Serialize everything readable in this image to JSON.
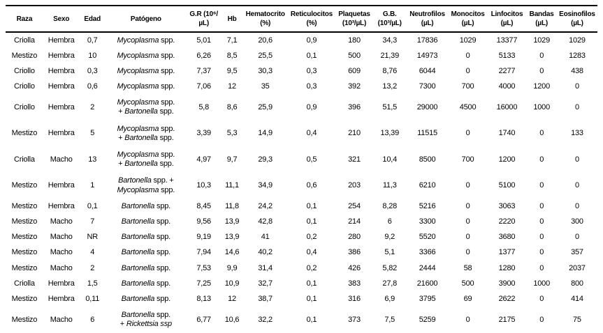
{
  "table": {
    "columns": [
      {
        "id": "raza",
        "lines": [
          "Raza"
        ]
      },
      {
        "id": "sexo",
        "lines": [
          "Sexo"
        ]
      },
      {
        "id": "edad",
        "lines": [
          "Edad"
        ]
      },
      {
        "id": "patogeno",
        "lines": [
          "Patógeno"
        ]
      },
      {
        "id": "gr",
        "lines": [
          "G.R (10⁶/",
          "µL)"
        ]
      },
      {
        "id": "hb",
        "lines": [
          "Hb"
        ]
      },
      {
        "id": "hematocrito",
        "lines": [
          "Hematocrito",
          "(%)"
        ]
      },
      {
        "id": "reticulocitos",
        "lines": [
          "Reticulocitos",
          "(%)"
        ]
      },
      {
        "id": "plaquetas",
        "lines": [
          "Plaquetas",
          "(10³/µL)"
        ]
      },
      {
        "id": "gb",
        "lines": [
          "G.B.",
          "(10³/µL)"
        ]
      },
      {
        "id": "neutrofilos",
        "lines": [
          "Neutrofilos",
          "(µL)"
        ]
      },
      {
        "id": "monocitos",
        "lines": [
          "Monocitos",
          "(µL)"
        ]
      },
      {
        "id": "linfocitos",
        "lines": [
          "Linfocitos",
          "(µL)"
        ]
      },
      {
        "id": "bandas",
        "lines": [
          "Bandas",
          "(µL)"
        ]
      },
      {
        "id": "eosinofilos",
        "lines": [
          "Eosinofilos",
          "(µL)"
        ]
      }
    ],
    "rows": [
      {
        "raza": "Criolla",
        "sexo": "Hembra",
        "edad": "0,7",
        "patogeno": [
          [
            {
              "t": "Mycoplasma",
              "i": true
            },
            {
              "t": " spp.",
              "i": false
            }
          ]
        ],
        "gr": "5,01",
        "hb": "7,1",
        "hematocrito": "20,6",
        "reticulocitos": "0,9",
        "plaquetas": "180",
        "gb": "34,3",
        "neutrofilos": "17836",
        "monocitos": "1029",
        "linfocitos": "13377",
        "bandas": "1029",
        "eosinofilos": "1029"
      },
      {
        "raza": "Mestizo",
        "sexo": "Hembra",
        "edad": "10",
        "patogeno": [
          [
            {
              "t": "Mycoplasma",
              "i": true
            },
            {
              "t": " spp.",
              "i": false
            }
          ]
        ],
        "gr": "6,26",
        "hb": "8,5",
        "hematocrito": "25,5",
        "reticulocitos": "0,1",
        "plaquetas": "500",
        "gb": "21,39",
        "neutrofilos": "14973",
        "monocitos": "0",
        "linfocitos": "5133",
        "bandas": "0",
        "eosinofilos": "1283"
      },
      {
        "raza": "Criollo",
        "sexo": "Hembra",
        "edad": "0,3",
        "patogeno": [
          [
            {
              "t": "Mycoplasma",
              "i": true
            },
            {
              "t": " spp.",
              "i": false
            }
          ]
        ],
        "gr": "7,37",
        "hb": "9,5",
        "hematocrito": "30,3",
        "reticulocitos": "0,3",
        "plaquetas": "609",
        "gb": "8,76",
        "neutrofilos": "6044",
        "monocitos": "0",
        "linfocitos": "2277",
        "bandas": "0",
        "eosinofilos": "438"
      },
      {
        "raza": "Criollo",
        "sexo": "Hembra",
        "edad": "0,6",
        "patogeno": [
          [
            {
              "t": "Mycoplasma",
              "i": true
            },
            {
              "t": " spp.",
              "i": false
            }
          ]
        ],
        "gr": "7,06",
        "hb": "12",
        "hematocrito": "35",
        "reticulocitos": "0,3",
        "plaquetas": "392",
        "gb": "13,2",
        "neutrofilos": "7300",
        "monocitos": "700",
        "linfocitos": "4000",
        "bandas": "1200",
        "eosinofilos": "0"
      },
      {
        "raza": "Criollo",
        "sexo": "Hembra",
        "edad": "2",
        "patogeno": [
          [
            {
              "t": "Mycoplasma",
              "i": true
            },
            {
              "t": " spp.",
              "i": false
            }
          ],
          [
            {
              "t": "+ ",
              "i": false
            },
            {
              "t": "Bartonella",
              "i": true
            },
            {
              "t": " spp.",
              "i": false
            }
          ]
        ],
        "gr": "5,8",
        "hb": "8,6",
        "hematocrito": "25,9",
        "reticulocitos": "0,9",
        "plaquetas": "396",
        "gb": "51,5",
        "neutrofilos": "29000",
        "monocitos": "4500",
        "linfocitos": "16000",
        "bandas": "1000",
        "eosinofilos": "0"
      },
      {
        "raza": "Mestizo",
        "sexo": "Hembra",
        "edad": "5",
        "patogeno": [
          [
            {
              "t": "Mycoplasma",
              "i": true
            },
            {
              "t": " spp.",
              "i": false
            }
          ],
          [
            {
              "t": "+ ",
              "i": false
            },
            {
              "t": "Bartonella",
              "i": true
            },
            {
              "t": " spp.",
              "i": false
            }
          ]
        ],
        "gr": "3,39",
        "hb": "5,3",
        "hematocrito": "14,9",
        "reticulocitos": "0,4",
        "plaquetas": "210",
        "gb": "13,39",
        "neutrofilos": "11515",
        "monocitos": "0",
        "linfocitos": "1740",
        "bandas": "0",
        "eosinofilos": "133"
      },
      {
        "raza": "Criolla",
        "sexo": "Macho",
        "edad": "13",
        "patogeno": [
          [
            {
              "t": "Mycoplasma",
              "i": true
            },
            {
              "t": " spp.",
              "i": false
            }
          ],
          [
            {
              "t": "+ ",
              "i": false
            },
            {
              "t": "Bartonella",
              "i": true
            },
            {
              "t": " spp.",
              "i": false
            }
          ]
        ],
        "gr": "4,97",
        "hb": "9,7",
        "hematocrito": "29,3",
        "reticulocitos": "0,5",
        "plaquetas": "321",
        "gb": "10,4",
        "neutrofilos": "8500",
        "monocitos": "700",
        "linfocitos": "1200",
        "bandas": "0",
        "eosinofilos": "0"
      },
      {
        "raza": "Mestizo",
        "sexo": "Hembra",
        "edad": "1",
        "patogeno": [
          [
            {
              "t": "Bartonella",
              "i": true
            },
            {
              "t": " spp. +",
              "i": false
            }
          ],
          [
            {
              "t": "Mycoplasma",
              "i": true
            },
            {
              "t": " spp.",
              "i": false
            }
          ]
        ],
        "gr": "10,3",
        "hb": "11,1",
        "hematocrito": "34,9",
        "reticulocitos": "0,6",
        "plaquetas": "203",
        "gb": "11,3",
        "neutrofilos": "6210",
        "monocitos": "0",
        "linfocitos": "5100",
        "bandas": "0",
        "eosinofilos": "0"
      },
      {
        "raza": "Mestizo",
        "sexo": "Hembra",
        "edad": "0,1",
        "patogeno": [
          [
            {
              "t": "Bartonella",
              "i": true
            },
            {
              "t": " spp.",
              "i": false
            }
          ]
        ],
        "gr": "8,45",
        "hb": "11,8",
        "hematocrito": "24,2",
        "reticulocitos": "0,1",
        "plaquetas": "254",
        "gb": "8,28",
        "neutrofilos": "5216",
        "monocitos": "0",
        "linfocitos": "3063",
        "bandas": "0",
        "eosinofilos": "0"
      },
      {
        "raza": "Mestizo",
        "sexo": "Macho",
        "edad": "7",
        "patogeno": [
          [
            {
              "t": "Bartonella",
              "i": true
            },
            {
              "t": " spp.",
              "i": false
            }
          ]
        ],
        "gr": "9,56",
        "hb": "13,9",
        "hematocrito": "42,8",
        "reticulocitos": "0,1",
        "plaquetas": "214",
        "gb": "6",
        "neutrofilos": "3300",
        "monocitos": "0",
        "linfocitos": "2220",
        "bandas": "0",
        "eosinofilos": "300"
      },
      {
        "raza": "Mestizo",
        "sexo": "Macho",
        "edad": "NR",
        "patogeno": [
          [
            {
              "t": "Bartonella",
              "i": true
            },
            {
              "t": " spp.",
              "i": false
            }
          ]
        ],
        "gr": "9,19",
        "hb": "13,9",
        "hematocrito": "41",
        "reticulocitos": "0,2",
        "plaquetas": "280",
        "gb": "9,2",
        "neutrofilos": "5520",
        "monocitos": "0",
        "linfocitos": "3680",
        "bandas": "0",
        "eosinofilos": "0"
      },
      {
        "raza": "Mestizo",
        "sexo": "Macho",
        "edad": "4",
        "patogeno": [
          [
            {
              "t": "Bartonella",
              "i": true
            },
            {
              "t": " spp.",
              "i": false
            }
          ]
        ],
        "gr": "7,94",
        "hb": "14,6",
        "hematocrito": "40,2",
        "reticulocitos": "0,4",
        "plaquetas": "386",
        "gb": "5,1",
        "neutrofilos": "3366",
        "monocitos": "0",
        "linfocitos": "1377",
        "bandas": "0",
        "eosinofilos": "357"
      },
      {
        "raza": "Mestizo",
        "sexo": "Macho",
        "edad": "2",
        "patogeno": [
          [
            {
              "t": "Bartonella",
              "i": true
            },
            {
              "t": " spp.",
              "i": false
            }
          ]
        ],
        "gr": "7,53",
        "hb": "9,9",
        "hematocrito": "31,4",
        "reticulocitos": "0,2",
        "plaquetas": "426",
        "gb": "5,82",
        "neutrofilos": "2444",
        "monocitos": "58",
        "linfocitos": "1280",
        "bandas": "0",
        "eosinofilos": "2037"
      },
      {
        "raza": "Criolla",
        "sexo": "Hembra",
        "edad": "1,5",
        "patogeno": [
          [
            {
              "t": "Bartonella",
              "i": true
            },
            {
              "t": " spp.",
              "i": false
            }
          ]
        ],
        "gr": "7,25",
        "hb": "10,9",
        "hematocrito": "32,7",
        "reticulocitos": "0,1",
        "plaquetas": "383",
        "gb": "27,8",
        "neutrofilos": "21600",
        "monocitos": "500",
        "linfocitos": "3900",
        "bandas": "1000",
        "eosinofilos": "800"
      },
      {
        "raza": "Mestizo",
        "sexo": "Hembra",
        "edad": "0,11",
        "patogeno": [
          [
            {
              "t": "Bartonella",
              "i": true
            },
            {
              "t": " spp.",
              "i": false
            }
          ]
        ],
        "gr": "8,13",
        "hb": "12",
        "hematocrito": "38,7",
        "reticulocitos": "0,1",
        "plaquetas": "316",
        "gb": "6,9",
        "neutrofilos": "3795",
        "monocitos": "69",
        "linfocitos": "2622",
        "bandas": "0",
        "eosinofilos": "414"
      },
      {
        "raza": "Mestizo",
        "sexo": "Macho",
        "edad": "6",
        "patogeno": [
          [
            {
              "t": "Bartonella",
              "i": true
            },
            {
              "t": " spp.",
              "i": false
            }
          ],
          [
            {
              "t": "+ ",
              "i": false
            },
            {
              "t": "Rickettsia",
              "i": true
            },
            {
              "t": " ssp",
              "i": true
            }
          ]
        ],
        "gr": "6,77",
        "hb": "10,6",
        "hematocrito": "32,2",
        "reticulocitos": "0,1",
        "plaquetas": "373",
        "gb": "7,5",
        "neutrofilos": "5259",
        "monocitos": "0",
        "linfocitos": "2175",
        "bandas": "0",
        "eosinofilos": "75"
      }
    ]
  },
  "colors": {
    "text": "#000000",
    "background": "#ffffff",
    "rule": "#000000"
  }
}
